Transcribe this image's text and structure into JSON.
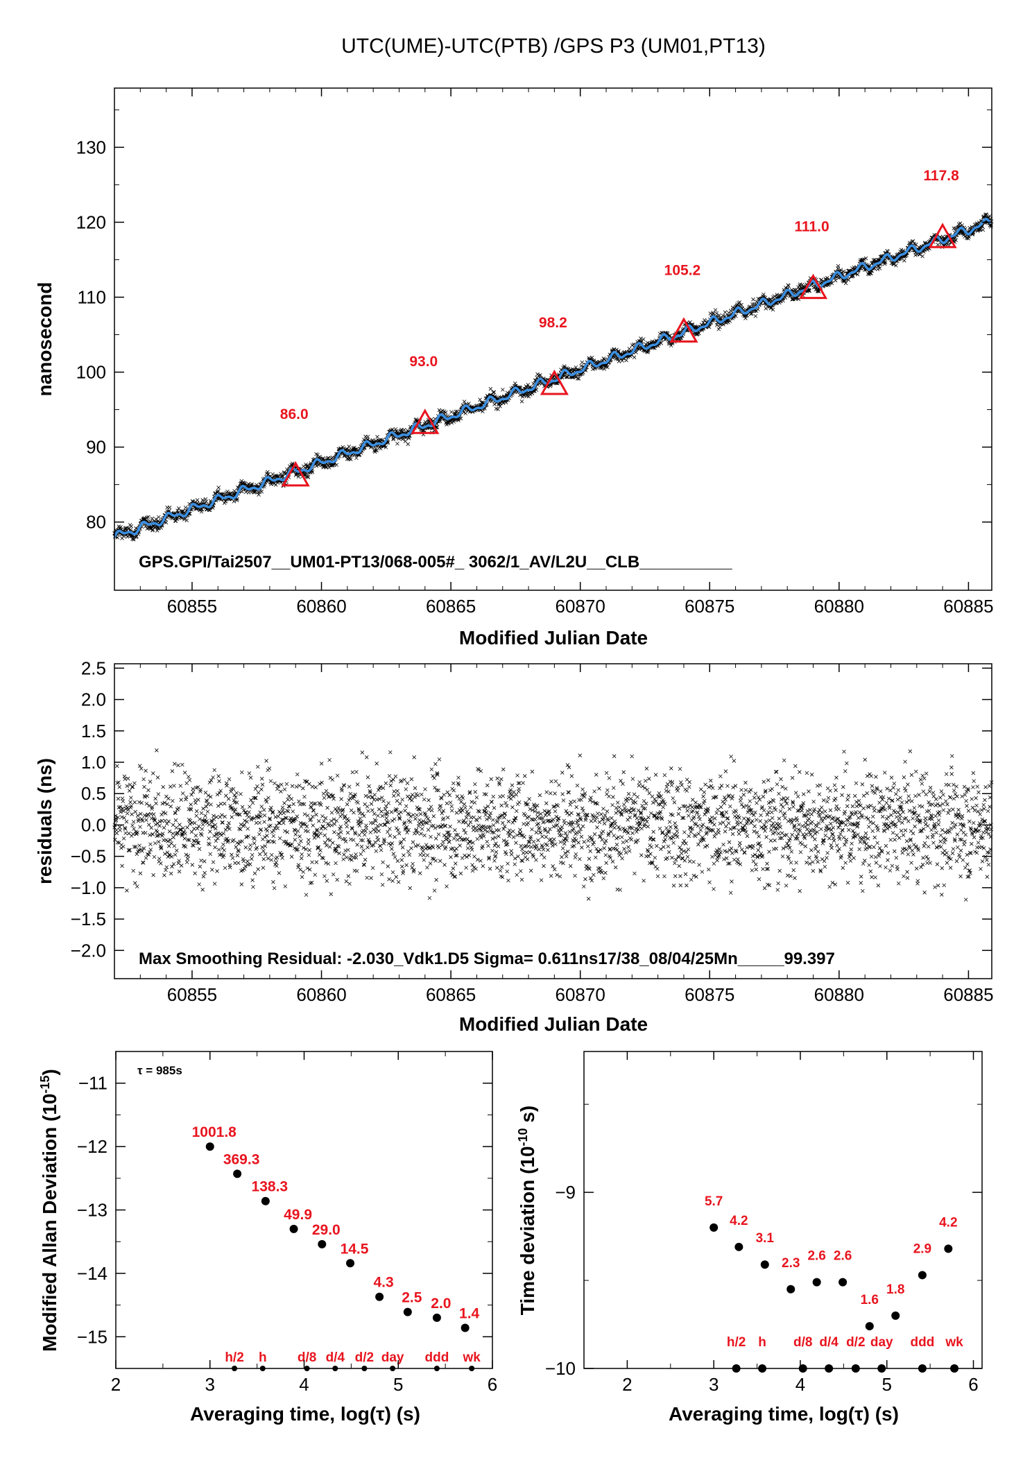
{
  "page": {
    "title": "UTC(UME)-UTC(PTB)  /GPS  P3  (UM01,PT13)"
  },
  "colors": {
    "fit": "#3a8ee0",
    "markers": "#e8141e",
    "points": "#000000"
  },
  "chart_data": [
    {
      "id": "timeseries",
      "type": "scatter",
      "title": "UTC(UME)-UTC(PTB)  /GPS  P3  (UM01,PT13)",
      "xlabel": "Modified Julian Date",
      "ylabel": "nanosecond",
      "xlim": [
        60852.0,
        60885.9
      ],
      "ylim": [
        70.9,
        137.9
      ],
      "xticks": [
        60855,
        60860,
        60865,
        60870,
        60875,
        60880,
        60885
      ],
      "yticks": [
        80,
        90,
        100,
        110,
        120,
        130
      ],
      "series": [
        {
          "kind": "fit-line",
          "x": [
            60852,
            60885.9
          ],
          "y": [
            78.0,
            120.1
          ],
          "color": "#3a8ee0"
        },
        {
          "kind": "daily-values",
          "x": [
            60859,
            60864,
            60869,
            60874,
            60879,
            60884
          ],
          "y": [
            86.0,
            93.0,
            98.2,
            105.2,
            111.0,
            117.8
          ],
          "labels": [
            "86.0",
            "93.0",
            "98.2",
            "105.2",
            "111.0",
            "117.8"
          ]
        }
      ],
      "point_scatter_ns": 1.0,
      "info_text": "GPS.GPI/Tai2507__UM01-PT13/068-005#_  3062/1_AV/L2U__CLB__________",
      "grid": false
    },
    {
      "id": "residuals",
      "type": "scatter",
      "xlabel": "Modified Julian Date",
      "ylabel": "residuals (ns)",
      "xlim": [
        60852.0,
        60885.9
      ],
      "ylim": [
        -2.45,
        2.57
      ],
      "xticks": [
        60855,
        60860,
        60865,
        60870,
        60875,
        60880,
        60885
      ],
      "yticks": [
        -2.0,
        -1.5,
        -1.0,
        -0.5,
        0.0,
        0.5,
        1.0,
        1.5,
        2.0,
        2.5
      ],
      "ytick_labels": [
        "−2.0",
        "−1.5",
        "−1.0",
        "−0.5",
        "0.0",
        "0.5",
        "1.0",
        "1.5",
        "2.0",
        "2.5"
      ],
      "sigma_ns": 0.611,
      "max_residual_ns": -2.03,
      "info_text": "Max Smoothing Residual: -2.030_Vdk1.D5  Sigma= 0.611ns17/38_08/04/25Mn_____99.397",
      "grid": false
    },
    {
      "id": "mdev",
      "type": "scatter",
      "xlabel": "Averaging time, log(τ) (s)",
      "ylabel": "Modified Allan Deviation (10⁻¹⁵)",
      "ylabel_parts": [
        "Modified Allan Deviation (10",
        "-15",
        ")"
      ],
      "xlim": [
        2,
        6
      ],
      "ylim": [
        -15.5,
        -10.5
      ],
      "xticks": [
        2,
        3,
        4,
        5,
        6
      ],
      "yticks": [
        -15,
        -14,
        -13,
        -12,
        -11
      ],
      "ytick_labels": [
        "−15",
        "−14",
        "−13",
        "−12",
        "−11"
      ],
      "tau_note": "τ = 985s",
      "x": [
        3.0,
        3.29,
        3.59,
        3.89,
        4.19,
        4.49,
        4.8,
        5.1,
        5.41,
        5.71
      ],
      "y": [
        -12.0,
        -12.43,
        -12.86,
        -13.3,
        -13.54,
        -13.84,
        -14.37,
        -14.61,
        -14.7,
        -14.86
      ],
      "labels": [
        "1001.8",
        "369.3",
        "138.3",
        "49.9",
        "29.0",
        "14.5",
        "4.3",
        "2.5",
        "2.0",
        "1.4"
      ],
      "interval_marks": {
        "labels": [
          "h/2",
          "h",
          "d/8",
          "d/4",
          "d/2",
          "day",
          "ddd",
          "wk"
        ],
        "x": [
          3.26,
          3.56,
          4.03,
          4.33,
          4.64,
          4.94,
          5.41,
          5.78
        ]
      },
      "grid": false
    },
    {
      "id": "tdev",
      "type": "scatter",
      "xlabel": "Averaging time, log(τ) (s)",
      "ylabel": "Time deviation (10⁻¹⁰ s)",
      "ylabel_parts": [
        "Time deviation (10",
        "-10",
        " s)"
      ],
      "xlim": [
        1.5,
        6.1
      ],
      "ylim": [
        -10,
        -8.2
      ],
      "xticks": [
        2,
        3,
        4,
        5,
        6
      ],
      "yticks": [
        -10,
        -9
      ],
      "ytick_labels": [
        "−10",
        "−9"
      ],
      "x": [
        3.0,
        3.29,
        3.59,
        3.89,
        4.19,
        4.49,
        4.8,
        5.1,
        5.41,
        5.71
      ],
      "y": [
        -9.2,
        -9.31,
        -9.41,
        -9.55,
        -9.51,
        -9.51,
        -9.76,
        -9.7,
        -9.47,
        -9.32
      ],
      "labels": [
        "5.7",
        "4.2",
        "3.1",
        "2.3",
        "2.6",
        "2.6",
        "1.6",
        "1.8",
        "2.9",
        "4.2"
      ],
      "interval_marks": {
        "labels": [
          "h/2",
          "h",
          "d/8",
          "d/4",
          "d/2",
          "day",
          "ddd",
          "wk"
        ],
        "x": [
          3.26,
          3.56,
          4.03,
          4.33,
          4.64,
          4.94,
          5.41,
          5.78
        ]
      },
      "grid": false
    }
  ]
}
